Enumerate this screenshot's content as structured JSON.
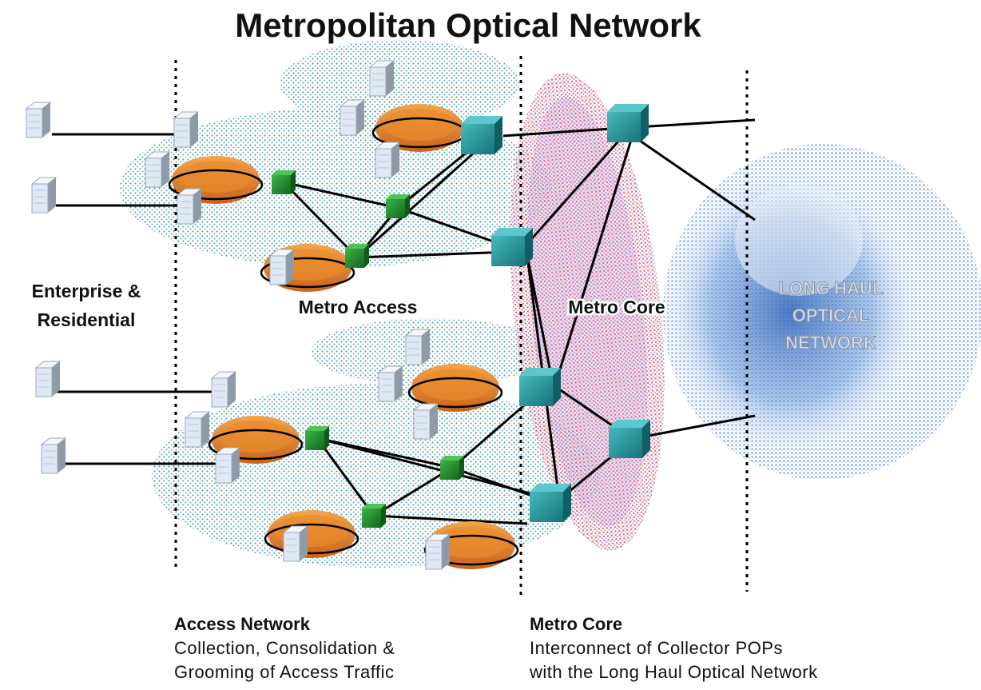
{
  "title": "Metropolitan Optical Network",
  "labels": {
    "enterprise": [
      "Enterprise &",
      "Residential"
    ],
    "metro_access": "Metro Access",
    "metro_core": "Metro Core",
    "long_haul": [
      "LONG HAUL",
      "OPTICAL",
      "NETWORK"
    ]
  },
  "captions": {
    "access": {
      "heading": "Access Network",
      "lines": [
        "Collection, Consolidation &",
        "Grooming of Access Traffic"
      ]
    },
    "core": {
      "heading": "Metro Core",
      "lines": [
        "Interconnect of Collector POPs",
        "with the Long Haul Optical Network"
      ]
    }
  },
  "colors": {
    "access_cloud": "#2f9f86",
    "core_ellipse": "#d83a4a",
    "long_haul_cloud": "#3f78c8",
    "ring_orange": "#e98a2c",
    "switch_green": "#1e8a2a",
    "core_router_teal": "#1f8f96",
    "server_light": "#dfe8f4"
  },
  "icons": {
    "server": "server-icon",
    "access_switch": "switch-icon",
    "core_router": "router-icon",
    "ring": "ring-icon"
  }
}
